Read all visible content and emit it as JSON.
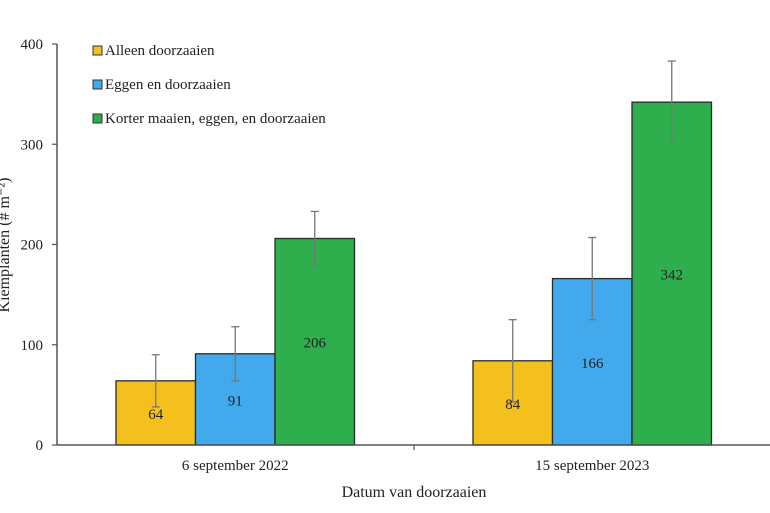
{
  "chart_data": {
    "type": "bar",
    "xlabel": "Datum van doorzaaien",
    "ylabel": "Kiemplanten (# m⁻²)",
    "ylim": [
      0,
      400
    ],
    "yticks": [
      "0",
      "100",
      "200",
      "300",
      "400"
    ],
    "categories": [
      "6 september 2022",
      "15 september 2023"
    ],
    "legend_position": "top-left",
    "series": [
      {
        "name": "Alleen doorzaaien",
        "color": "#F4C01E",
        "values": [
          64,
          84
        ],
        "errors": [
          26,
          41
        ]
      },
      {
        "name": "Eggen en doorzaaien",
        "color": "#41A9EC",
        "values": [
          91,
          166
        ],
        "errors": [
          27,
          41
        ]
      },
      {
        "name": "Korter maaien, eggen, en doorzaaien",
        "color": "#2EAE4C",
        "values": [
          206,
          342
        ],
        "errors": [
          27,
          41
        ]
      }
    ]
  }
}
